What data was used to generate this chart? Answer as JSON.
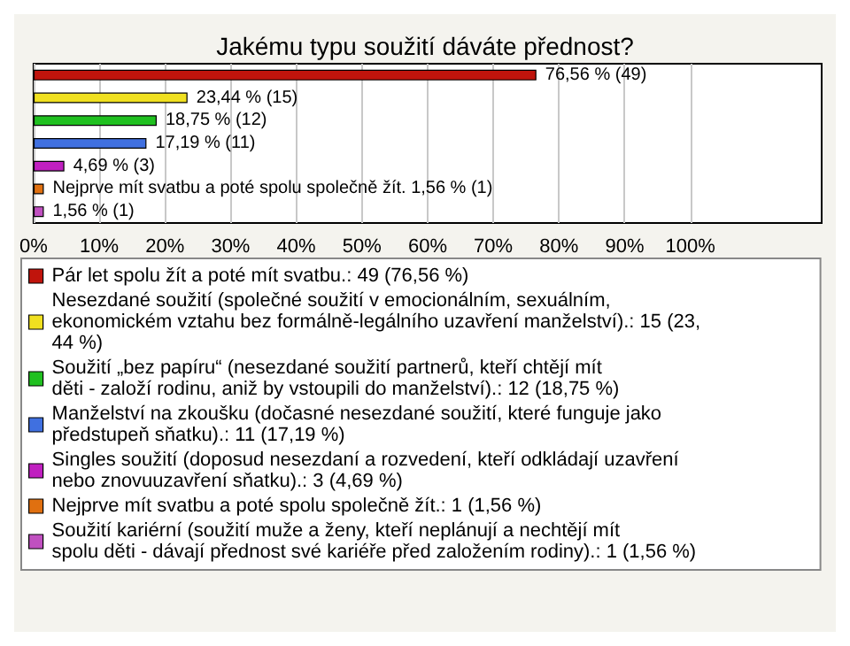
{
  "chart_data": {
    "type": "bar",
    "orientation": "horizontal",
    "title": "Jakému typu soužití dáváte přednost?",
    "categories": [
      null,
      null,
      null,
      null,
      null,
      null,
      null
    ],
    "series": [
      {
        "name": "Pár let spolu žít a poté mít svatbu.: 49 (76,56 %)",
        "color": "#c0140c",
        "values": [
          76.56,
          null,
          null,
          null,
          null,
          null,
          null
        ],
        "value_labels": [
          "76,56 % (49)",
          null,
          null,
          null,
          null,
          null,
          null
        ]
      },
      {
        "name": "Nesezdané soužití (společné soužití v emocionálním, sexuálním, ekonomickém vztahu bez formálně-legálního uzavření manželství).: 15 (23,44 %)",
        "color": "#f0e020",
        "values": [
          null,
          23.44,
          null,
          null,
          null,
          null,
          null
        ],
        "value_labels": [
          null,
          "23,44 % (15)",
          null,
          null,
          null,
          null,
          null
        ]
      },
      {
        "name": "Soužití „bez papíru“ (nesezdané soužití partnerů, kteří chtějí mít děti - založí rodinu, aniž by vstoupili do manželství).: 12 (18,75 %)",
        "color": "#20c020",
        "values": [
          null,
          null,
          18.75,
          null,
          null,
          null,
          null
        ],
        "value_labels": [
          null,
          null,
          "18,75 % (12)",
          null,
          null,
          null,
          null
        ]
      },
      {
        "name": "Manželství na zkoušku (dočasné nesezdané soužití, které funguje jako předstupeň sňatku).: 11 (17,19 %)",
        "color": "#4070e0",
        "values": [
          null,
          null,
          null,
          17.19,
          null,
          null,
          null
        ],
        "value_labels": [
          null,
          null,
          null,
          "17,19 % (11)",
          null,
          null,
          null
        ]
      },
      {
        "name": "Singles soužití (doposud nesezdaní a rozvedení, kteří odkládají uzavření nebo znovuuzavření sňatku).: 3 (4,69 %)",
        "color": "#c020c0",
        "values": [
          null,
          null,
          null,
          null,
          4.69,
          null,
          null
        ],
        "value_labels": [
          null,
          null,
          null,
          null,
          "4,69 % (3)",
          null,
          null
        ]
      },
      {
        "name": "Nejprve mít svatbu a poté spolu společně žít.: 1 (1,56 %)",
        "color": "#e07010",
        "values": [
          null,
          null,
          null,
          null,
          null,
          1.56,
          null
        ],
        "value_labels": [
          null,
          null,
          null,
          null,
          null,
          "Nejprve mít svatbu a poté spolu společně žít. 1,56 % (1)",
          null
        ]
      },
      {
        "name": "Soužití kariérní (soužití muže a ženy, kteří neplánují a nechtějí mít spolu děti - dávají přednost své kariéře před založením rodiny).: 1 (1,56 %)",
        "color": "#c050c0",
        "values": [
          null,
          null,
          null,
          null,
          null,
          null,
          1.56
        ],
        "value_labels": [
          null,
          null,
          null,
          null,
          null,
          null,
          "1,56 % (1)"
        ]
      }
    ],
    "xlim": [
      0,
      120
    ],
    "xticks": [
      {
        "value": 0,
        "label": "0%"
      },
      {
        "value": 10,
        "label": "10%"
      },
      {
        "value": 20,
        "label": "20%"
      },
      {
        "value": 30,
        "label": "30%"
      },
      {
        "value": 40,
        "label": "40%"
      },
      {
        "value": 50,
        "label": "50%"
      },
      {
        "value": 60,
        "label": "60%"
      },
      {
        "value": 70,
        "label": "70%"
      },
      {
        "value": 80,
        "label": "80%"
      },
      {
        "value": 90,
        "label": "90%"
      },
      {
        "value": 100,
        "label": "100%"
      }
    ],
    "grid": "x",
    "legend": "bottom",
    "tick_labels": "x"
  }
}
